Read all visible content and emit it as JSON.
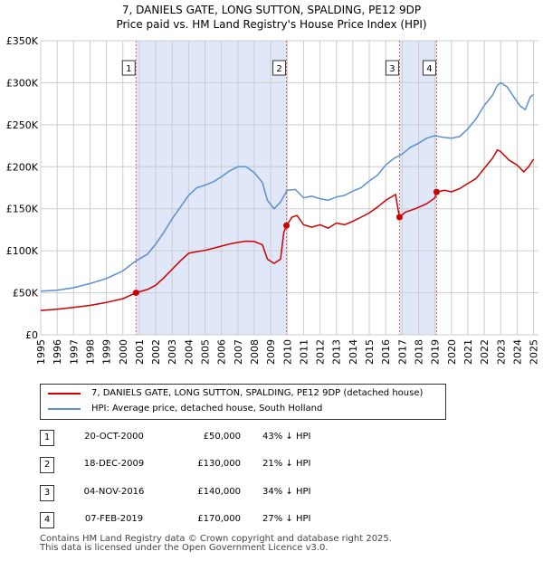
{
  "chart_data": {
    "type": "line",
    "title": "7, DANIELS GATE, LONG SUTTON, SPALDING, PE12 9DP",
    "subtitle": "Price paid vs. HM Land Registry's House Price Index (HPI)",
    "xlim": [
      1995.0,
      2025.3
    ],
    "ylim": [
      0,
      350000
    ],
    "y_ticks": [
      {
        "value": 0,
        "label": "£0"
      },
      {
        "value": 50000,
        "label": "£50K"
      },
      {
        "value": 100000,
        "label": "£100K"
      },
      {
        "value": 150000,
        "label": "£150K"
      },
      {
        "value": 200000,
        "label": "£200K"
      },
      {
        "value": 250000,
        "label": "£250K"
      },
      {
        "value": 300000,
        "label": "£300K"
      },
      {
        "value": 350000,
        "label": "£350K"
      }
    ],
    "x_ticks": [
      "1995",
      "1996",
      "1997",
      "1998",
      "1999",
      "2000",
      "2001",
      "2002",
      "2003",
      "2004",
      "2005",
      "2006",
      "2007",
      "2008",
      "2009",
      "2010",
      "2011",
      "2012",
      "2013",
      "2014",
      "2015",
      "2016",
      "2017",
      "2018",
      "2019",
      "2020",
      "2021",
      "2022",
      "2023",
      "2024",
      "2025"
    ],
    "grid": true,
    "series": [
      {
        "name": "7, DANIELS GATE, LONG SUTTON, SPALDING, PE12 9DP (detached house)",
        "color": "#cc0000",
        "points": [
          [
            1995.0,
            29000
          ],
          [
            1996.0,
            30500
          ],
          [
            1997.0,
            32500
          ],
          [
            1998.0,
            35000
          ],
          [
            1999.0,
            38500
          ],
          [
            2000.0,
            43000
          ],
          [
            2000.8,
            50000
          ],
          [
            2001.5,
            54000
          ],
          [
            2002.0,
            59000
          ],
          [
            2002.5,
            68000
          ],
          [
            2003.0,
            78000
          ],
          [
            2003.5,
            88000
          ],
          [
            2004.0,
            97000
          ],
          [
            2004.5,
            99000
          ],
          [
            2005.0,
            100500
          ],
          [
            2005.5,
            103000
          ],
          [
            2006.0,
            105500
          ],
          [
            2006.5,
            108000
          ],
          [
            2007.0,
            110000
          ],
          [
            2007.5,
            111500
          ],
          [
            2008.0,
            111000
          ],
          [
            2008.5,
            107000
          ],
          [
            2008.8,
            90000
          ],
          [
            2009.2,
            85000
          ],
          [
            2009.6,
            90000
          ],
          [
            2009.8,
            122000
          ],
          [
            2009.96,
            130000
          ],
          [
            2010.3,
            140000
          ],
          [
            2010.6,
            142000
          ],
          [
            2011.0,
            131000
          ],
          [
            2011.5,
            128000
          ],
          [
            2012.0,
            131000
          ],
          [
            2012.5,
            127000
          ],
          [
            2013.0,
            133000
          ],
          [
            2013.5,
            131000
          ],
          [
            2014.0,
            135000
          ],
          [
            2014.5,
            140000
          ],
          [
            2015.0,
            145000
          ],
          [
            2015.5,
            152000
          ],
          [
            2016.0,
            160000
          ],
          [
            2016.6,
            167000
          ],
          [
            2016.7,
            155000
          ],
          [
            2016.84,
            140000
          ],
          [
            2017.2,
            146000
          ],
          [
            2017.8,
            150000
          ],
          [
            2018.5,
            156000
          ],
          [
            2019.0,
            163000
          ],
          [
            2019.1,
            170000
          ],
          [
            2019.6,
            172000
          ],
          [
            2020.0,
            170000
          ],
          [
            2020.5,
            174000
          ],
          [
            2021.0,
            180000
          ],
          [
            2021.5,
            186000
          ],
          [
            2022.0,
            198000
          ],
          [
            2022.5,
            210000
          ],
          [
            2022.8,
            220000
          ],
          [
            2023.0,
            218000
          ],
          [
            2023.5,
            208000
          ],
          [
            2024.0,
            202000
          ],
          [
            2024.4,
            194000
          ],
          [
            2024.7,
            200000
          ],
          [
            2025.0,
            209000
          ]
        ]
      },
      {
        "name": "HPI: Average price, detached house, South Holland",
        "color": "#5b8fd0",
        "points": [
          [
            1995.0,
            52000
          ],
          [
            1996.0,
            53000
          ],
          [
            1997.0,
            56000
          ],
          [
            1998.0,
            61000
          ],
          [
            1999.0,
            67000
          ],
          [
            2000.0,
            76000
          ],
          [
            2000.8,
            88000
          ],
          [
            2001.5,
            96000
          ],
          [
            2002.0,
            108000
          ],
          [
            2002.5,
            122000
          ],
          [
            2003.0,
            138000
          ],
          [
            2003.5,
            152000
          ],
          [
            2004.0,
            166000
          ],
          [
            2004.5,
            175000
          ],
          [
            2005.0,
            178000
          ],
          [
            2005.5,
            182000
          ],
          [
            2006.0,
            188000
          ],
          [
            2006.5,
            195000
          ],
          [
            2007.0,
            200000
          ],
          [
            2007.5,
            200000
          ],
          [
            2008.0,
            193000
          ],
          [
            2008.5,
            181000
          ],
          [
            2008.8,
            160000
          ],
          [
            2009.2,
            150000
          ],
          [
            2009.6,
            158000
          ],
          [
            2010.0,
            172000
          ],
          [
            2010.5,
            173000
          ],
          [
            2011.0,
            163000
          ],
          [
            2011.5,
            165000
          ],
          [
            2012.0,
            162000
          ],
          [
            2012.5,
            160000
          ],
          [
            2013.0,
            164000
          ],
          [
            2013.5,
            166000
          ],
          [
            2014.0,
            171000
          ],
          [
            2014.5,
            175000
          ],
          [
            2015.0,
            183000
          ],
          [
            2015.5,
            190000
          ],
          [
            2016.0,
            202000
          ],
          [
            2016.5,
            210000
          ],
          [
            2017.0,
            215000
          ],
          [
            2017.5,
            223000
          ],
          [
            2018.0,
            228000
          ],
          [
            2018.5,
            234000
          ],
          [
            2019.0,
            237000
          ],
          [
            2019.5,
            235000
          ],
          [
            2020.0,
            234000
          ],
          [
            2020.5,
            236000
          ],
          [
            2021.0,
            245000
          ],
          [
            2021.5,
            257000
          ],
          [
            2022.0,
            273000
          ],
          [
            2022.5,
            285000
          ],
          [
            2022.8,
            297000
          ],
          [
            2023.0,
            300000
          ],
          [
            2023.4,
            295000
          ],
          [
            2023.8,
            283000
          ],
          [
            2024.2,
            272000
          ],
          [
            2024.5,
            268000
          ],
          [
            2024.8,
            283000
          ],
          [
            2025.0,
            286000
          ]
        ]
      }
    ],
    "sales": [
      {
        "label": "1",
        "x": 2000.8,
        "y": 50000
      },
      {
        "label": "2",
        "x": 2009.96,
        "y": 130000
      },
      {
        "label": "3",
        "x": 2016.84,
        "y": 140000
      },
      {
        "label": "4",
        "x": 2019.1,
        "y": 170000
      }
    ],
    "shaded_ranges": [
      [
        2000.8,
        2009.96
      ],
      [
        2016.84,
        2019.1
      ]
    ]
  },
  "legend": {
    "property_label": "7, DANIELS GATE, LONG SUTTON, SPALDING, PE12 9DP (detached house)",
    "hpi_label": "HPI: Average price, detached house, South Holland",
    "property_color": "#cc0000",
    "hpi_color": "#5b8fd0"
  },
  "transactions": [
    {
      "num": "1",
      "date": "20-OCT-2000",
      "price": "£50,000",
      "hpi": "43% ↓ HPI"
    },
    {
      "num": "2",
      "date": "18-DEC-2009",
      "price": "£130,000",
      "hpi": "21% ↓ HPI"
    },
    {
      "num": "3",
      "date": "04-NOV-2016",
      "price": "£140,000",
      "hpi": "34% ↓ HPI"
    },
    {
      "num": "4",
      "date": "07-FEB-2019",
      "price": "£170,000",
      "hpi": "27% ↓ HPI"
    }
  ],
  "footer": {
    "line1": "Contains HM Land Registry data © Crown copyright and database right 2025.",
    "line2": "This data is licensed under the Open Government Licence v3.0."
  }
}
